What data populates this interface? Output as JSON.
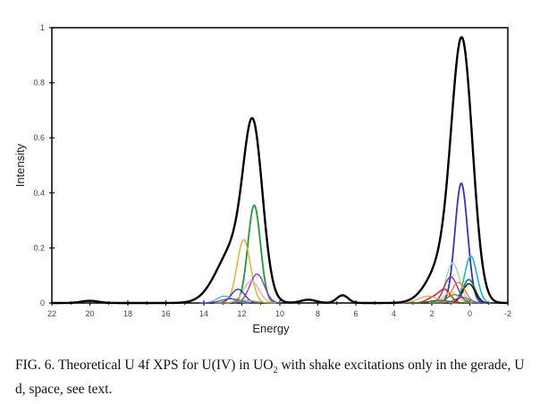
{
  "chart_data": {
    "type": "line",
    "title": "",
    "xlabel": "Energy",
    "ylabel": "Intensity",
    "xlim": [
      22,
      -2
    ],
    "ylim": [
      0,
      1
    ],
    "x_reversed": true,
    "grid": false,
    "legend": "none",
    "x_ticks": [
      22,
      20,
      18,
      16,
      14,
      12,
      10,
      8,
      6,
      4,
      2,
      0,
      -2
    ],
    "y_ticks": [
      0,
      0.2,
      0.4,
      0.6,
      0.8,
      1
    ],
    "x_tick_labels": [
      "22",
      "20",
      "18",
      "16",
      "14",
      "12",
      "10",
      "8",
      "6",
      "4",
      "2",
      "0",
      "-2"
    ],
    "y_tick_labels": [
      "0",
      "0.2",
      "0.4",
      "0.6",
      "0.8",
      "1"
    ],
    "series": [
      {
        "name": "total",
        "color": "#000000",
        "width": 2.4,
        "peaks": [
          {
            "center": 20.0,
            "height": 0.008,
            "sigma": 0.45
          },
          {
            "center": 12.4,
            "height": 0.2,
            "sigma": 0.9
          },
          {
            "center": 11.4,
            "height": 0.56,
            "sigma": 0.5
          },
          {
            "center": 8.5,
            "height": 0.012,
            "sigma": 0.4
          },
          {
            "center": 6.7,
            "height": 0.028,
            "sigma": 0.3
          },
          {
            "center": 1.4,
            "height": 0.14,
            "sigma": 0.8
          },
          {
            "center": 0.4,
            "height": 0.9,
            "sigma": 0.55
          }
        ]
      },
      {
        "name": "component-green",
        "color": "#1a9a3a",
        "width": 1.8,
        "peaks": [
          {
            "center": 11.35,
            "height": 0.355,
            "sigma": 0.33
          }
        ]
      },
      {
        "name": "component-orange",
        "color": "#f0a820",
        "width": 1.4,
        "peaks": [
          {
            "center": 11.9,
            "height": 0.23,
            "sigma": 0.35
          }
        ]
      },
      {
        "name": "component-purple",
        "color": "#8a3fc0",
        "width": 1.4,
        "peaks": [
          {
            "center": 11.2,
            "height": 0.105,
            "sigma": 0.38
          }
        ]
      },
      {
        "name": "component-pink",
        "color": "#f0a8a8",
        "width": 1.4,
        "peaks": [
          {
            "center": 11.5,
            "height": 0.08,
            "sigma": 0.4
          }
        ]
      },
      {
        "name": "component-blue-left",
        "color": "#2a3ab8",
        "width": 1.4,
        "peaks": [
          {
            "center": 12.2,
            "height": 0.05,
            "sigma": 0.35
          }
        ]
      },
      {
        "name": "component-cyan-left",
        "color": "#20b8d0",
        "width": 1.2,
        "peaks": [
          {
            "center": 12.9,
            "height": 0.025,
            "sigma": 0.4
          }
        ]
      },
      {
        "name": "component-violet-left",
        "color": "#7a30c8",
        "width": 1.2,
        "peaks": [
          {
            "center": 12.6,
            "height": 0.015,
            "sigma": 0.5
          }
        ]
      },
      {
        "name": "component-olive-left",
        "color": "#8ab020",
        "width": 1.2,
        "peaks": [
          {
            "center": 11.8,
            "height": 0.01,
            "sigma": 0.5
          }
        ]
      },
      {
        "name": "component-indigo",
        "color": "#3a30c0",
        "width": 1.8,
        "peaks": [
          {
            "center": 0.45,
            "height": 0.435,
            "sigma": 0.33
          }
        ]
      },
      {
        "name": "component-cyan",
        "color": "#18b8c8",
        "width": 1.6,
        "peaks": [
          {
            "center": -0.05,
            "height": 0.17,
            "sigma": 0.32
          }
        ]
      },
      {
        "name": "component-lightgreen",
        "color": "#a8d8a8",
        "width": 1.4,
        "peaks": [
          {
            "center": 0.9,
            "height": 0.145,
            "sigma": 0.35
          }
        ]
      },
      {
        "name": "component-teal",
        "color": "#187060",
        "width": 1.6,
        "peaks": [
          {
            "center": 0.05,
            "height": 0.085,
            "sigma": 0.32
          }
        ]
      },
      {
        "name": "component-black-small",
        "color": "#111111",
        "width": 1.4,
        "peaks": [
          {
            "center": 0.05,
            "height": 0.07,
            "sigma": 0.32
          }
        ]
      },
      {
        "name": "component-magenta",
        "color": "#a02898",
        "width": 1.4,
        "peaks": [
          {
            "center": 1.0,
            "height": 0.095,
            "sigma": 0.35
          }
        ]
      },
      {
        "name": "component-orange-right",
        "color": "#f08020",
        "width": 1.4,
        "peaks": [
          {
            "center": 0.6,
            "height": 0.075,
            "sigma": 0.35
          }
        ]
      },
      {
        "name": "component-red",
        "color": "#e82020",
        "width": 1.6,
        "peaks": [
          {
            "center": 1.3,
            "height": 0.045,
            "sigma": 0.3
          },
          {
            "center": 1.9,
            "height": 0.02,
            "sigma": 0.35
          }
        ]
      },
      {
        "name": "component-yellow",
        "color": "#e8c020",
        "width": 1.2,
        "peaks": [
          {
            "center": 1.0,
            "height": 0.04,
            "sigma": 0.35
          }
        ]
      },
      {
        "name": "component-green-right",
        "color": "#20a050",
        "width": 1.2,
        "peaks": [
          {
            "center": 0.8,
            "height": 0.03,
            "sigma": 0.4
          }
        ]
      },
      {
        "name": "component-orange-wide",
        "color": "#f0a040",
        "width": 1.2,
        "peaks": [
          {
            "center": 2.2,
            "height": 0.025,
            "sigma": 0.5
          }
        ]
      },
      {
        "name": "component-purple-right",
        "color": "#8040c0",
        "width": 1.2,
        "peaks": [
          {
            "center": 0.4,
            "height": 0.02,
            "sigma": 0.4
          }
        ]
      },
      {
        "name": "component-darkgreen-right",
        "color": "#207030",
        "width": 1.2,
        "peaks": [
          {
            "center": 1.6,
            "height": 0.01,
            "sigma": 0.5
          }
        ]
      }
    ]
  },
  "caption": {
    "prefix": "FIG. 6.  Theoretical U 4f XPS for U(IV) in UO",
    "subscript": "2",
    "suffix": " with shake excitations only in the gerade, U d, space, see text."
  }
}
